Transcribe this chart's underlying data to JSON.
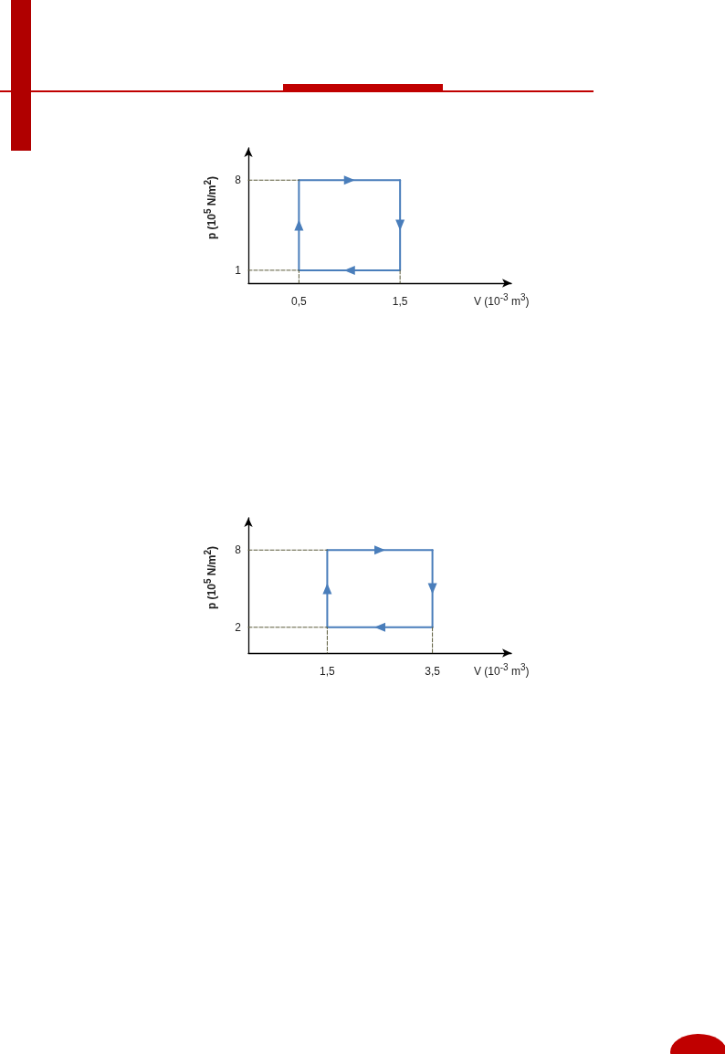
{
  "chart_data": [
    {
      "type": "line",
      "xlabel": "V (10$^{-3}$ m$^{3}$)",
      "ylabel": "p (10$^{5}$ N/m$^{2}$)",
      "xlim": [
        0,
        2.6
      ],
      "ylim": [
        0,
        10.5
      ],
      "xticks": [
        {
          "value": 0.5,
          "label": "0,5"
        },
        {
          "value": 1.5,
          "label": "1,5"
        }
      ],
      "yticks": [
        1,
        8
      ],
      "grid": false,
      "marker": "none",
      "series": [
        {
          "color": "#4a7ebb",
          "line_style": "solid",
          "x": [
            0.5,
            0.5
          ],
          "values": [
            1,
            8
          ]
        },
        {
          "color": "#4a7ebb",
          "line_style": "solid",
          "x": [
            0.5,
            1.5
          ],
          "values": [
            8,
            8
          ]
        },
        {
          "color": "#4a7ebb",
          "line_style": "solid",
          "x": [
            1.5,
            1.5
          ],
          "values": [
            8,
            1
          ]
        },
        {
          "color": "#4a7ebb",
          "line_style": "solid",
          "x": [
            1.5,
            0.5
          ],
          "values": [
            1,
            1
          ]
        },
        {
          "color": "#5a5a3a",
          "line_style": "dashed",
          "x": [
            0,
            0.5
          ],
          "values": [
            8,
            8
          ]
        },
        {
          "color": "#5a5a3a",
          "line_style": "dashed",
          "x": [
            0,
            0.5,
            0.5
          ],
          "values": [
            1,
            1,
            0
          ]
        },
        {
          "color": "#5a5a3a",
          "line_style": "dashed",
          "x": [
            1.5,
            1.5
          ],
          "values": [
            1,
            0
          ]
        }
      ]
    },
    {
      "type": "line",
      "xlabel": "V (10$^{-3}$ m$^{3}$)",
      "ylabel": "p (10$^{5}$ N/m$^{2}$)",
      "xlim": [
        0,
        5
      ],
      "ylim": [
        0,
        10.5
      ],
      "xticks": [
        {
          "value": 1.5,
          "label": "1,5"
        },
        {
          "value": 3.5,
          "label": "3,5"
        }
      ],
      "yticks": [
        2,
        8
      ],
      "grid": false,
      "marker": "none",
      "series": [
        {
          "color": "#4a7ebb",
          "line_style": "solid",
          "x": [
            1.5,
            1.5
          ],
          "values": [
            2,
            8
          ]
        },
        {
          "color": "#4a7ebb",
          "line_style": "solid",
          "x": [
            1.5,
            3.5
          ],
          "values": [
            8,
            8
          ]
        },
        {
          "color": "#4a7ebb",
          "line_style": "solid",
          "x": [
            3.5,
            3.5
          ],
          "values": [
            8,
            2
          ]
        },
        {
          "color": "#4a7ebb",
          "line_style": "solid",
          "x": [
            3.5,
            1.5
          ],
          "values": [
            2,
            2
          ]
        },
        {
          "color": "#5a5a3a",
          "line_style": "dashed",
          "x": [
            0,
            1.5
          ],
          "values": [
            8,
            8
          ]
        },
        {
          "color": "#5a5a3a",
          "line_style": "dashed",
          "x": [
            0,
            1.5,
            1.5
          ],
          "values": [
            2,
            2,
            0
          ]
        },
        {
          "color": "#5a5a3a",
          "line_style": "dashed",
          "x": [
            3.5,
            3.5
          ],
          "values": [
            2,
            0
          ]
        }
      ]
    }
  ]
}
